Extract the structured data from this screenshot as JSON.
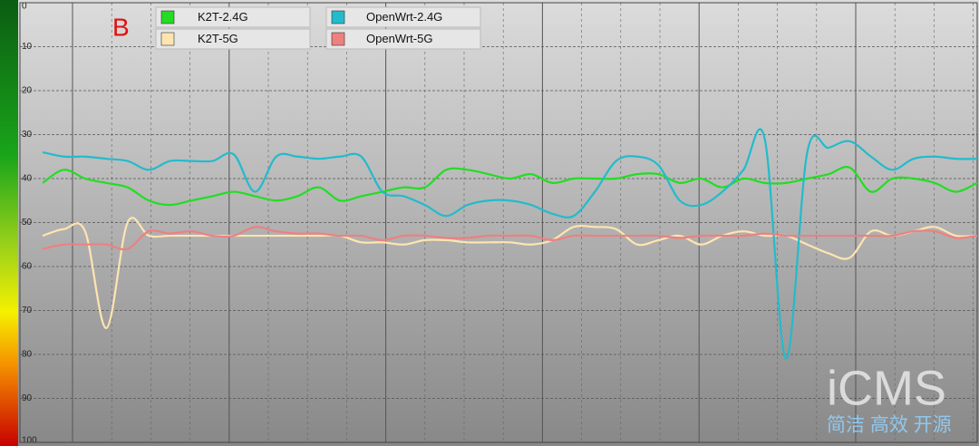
{
  "chart_data": {
    "type": "line",
    "annotations": [
      "B",
      "iCMS",
      "简洁 高效 开源"
    ],
    "categories": [
      null,
      null,
      null,
      null,
      null,
      null,
      null,
      null,
      null,
      null,
      null,
      null,
      null,
      null,
      null,
      null,
      null,
      null,
      null,
      null,
      null,
      null,
      null,
      null,
      null,
      null,
      null,
      null,
      null,
      null,
      null,
      null,
      null,
      null,
      null,
      null,
      null,
      null,
      null,
      null,
      null,
      null,
      null,
      null,
      null
    ],
    "series": [
      {
        "name": "K2T-2.4G",
        "color": "#22dd22",
        "values": [
          41,
          38,
          40,
          41,
          42,
          45,
          46,
          45,
          44,
          43,
          44,
          45,
          44,
          42,
          45,
          44,
          43,
          42,
          42,
          38,
          38,
          39,
          40,
          39,
          41,
          40,
          40,
          40,
          39,
          39,
          41,
          40,
          42,
          40,
          41,
          41,
          40,
          39,
          37.5,
          43,
          40,
          40,
          41,
          43,
          41
        ]
      },
      {
        "name": "K2T-5G",
        "color": "#ffe4b0",
        "values": [
          53,
          51.5,
          52,
          74,
          50,
          53,
          53,
          53,
          53,
          53,
          53,
          53,
          53,
          53,
          53,
          54.5,
          54.5,
          55,
          54,
          54,
          54.5,
          54.5,
          54.5,
          55,
          54,
          51,
          51,
          51.5,
          55,
          54,
          53,
          55,
          53,
          52,
          53,
          53,
          55,
          57,
          58,
          52,
          53,
          52,
          51,
          53,
          53
        ]
      },
      {
        "name": "OpenWrt-2.4G",
        "color": "#22bbcc",
        "values": [
          34,
          35,
          35,
          35.5,
          36,
          38,
          36,
          36,
          36,
          34.5,
          43,
          35,
          35,
          35.5,
          35,
          35,
          43,
          44,
          46,
          48.5,
          46,
          45,
          45,
          46,
          48,
          48.5,
          43,
          36,
          35,
          37,
          45,
          46,
          43,
          38,
          31,
          81,
          34,
          33,
          31.5,
          35,
          38,
          35.5,
          35,
          35.5,
          35.5
        ]
      },
      {
        "name": "OpenWrt-5G",
        "color": "#ee8080",
        "values": [
          56,
          55,
          55,
          55,
          56,
          52,
          52.5,
          52,
          53,
          53,
          51,
          52,
          52.5,
          52.5,
          53,
          53,
          54,
          53,
          53,
          53.5,
          53.5,
          53,
          53,
          53,
          54,
          53,
          53,
          53,
          53,
          53,
          53.5,
          53,
          53,
          53,
          52.5,
          53,
          53,
          53,
          53,
          53,
          53,
          52,
          52,
          53.5,
          53
        ]
      }
    ],
    "ylim": [
      0,
      100
    ],
    "y_reversed": true,
    "yticks": [
      0,
      10,
      20,
      30,
      40,
      50,
      60,
      70,
      80,
      90,
      100
    ],
    "grid": true,
    "legend": "upper left"
  }
}
